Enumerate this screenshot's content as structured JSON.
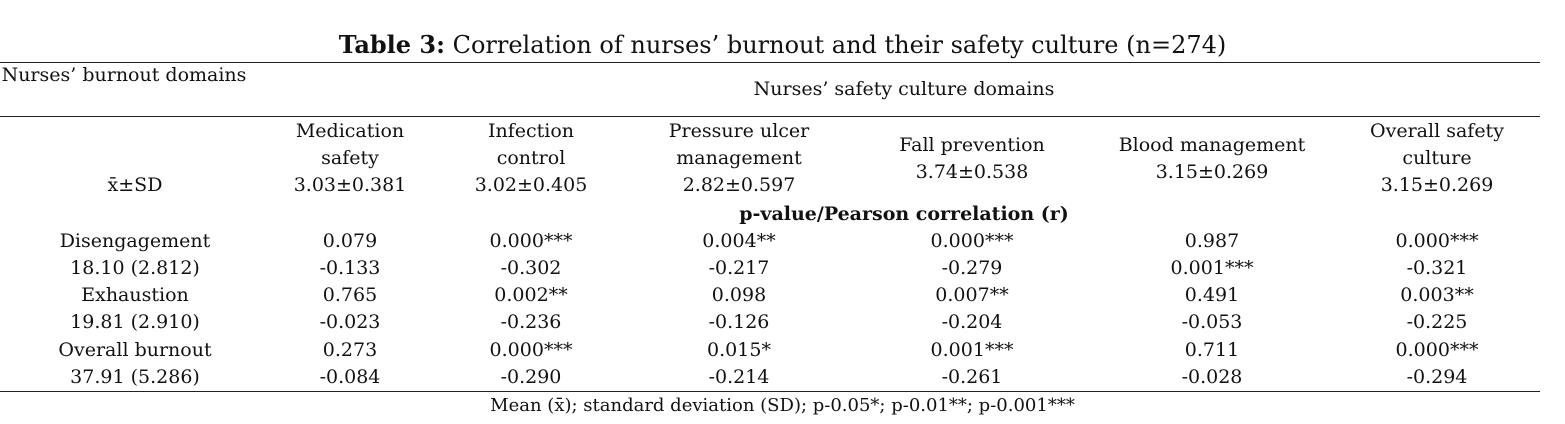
{
  "table": {
    "title_bold": "Table 3:",
    "title_rest": " Correlation of nurses’ burnout and their safety culture (n=274)",
    "burnout_header": "Nurses’ burnout domains",
    "safety_header": "Nurses’ safety culture domains",
    "xsd_label": "x̄±SD",
    "columns": [
      {
        "name": "Medication safety",
        "stat": "3.03±0.381"
      },
      {
        "name": "Infection control",
        "stat": "3.02±0.405"
      },
      {
        "name": "Pressure ulcer management",
        "stat": "2.82±0.597"
      },
      {
        "name": "Fall prevention",
        "stat": "3.74±0.538"
      },
      {
        "name": "Blood management",
        "stat": "3.15±0.269"
      },
      {
        "name": "Overall safety culture",
        "stat": "3.15±0.269"
      }
    ],
    "pvalue_header": "p-value/Pearson correlation (r)",
    "rows": [
      {
        "label": "Disengagement",
        "stat": "18.10 (2.812)",
        "p": [
          "0.079",
          "0.000***",
          "0.004**",
          "0.000***",
          "0.987",
          "0.000***"
        ],
        "r": [
          "-0.133",
          "-0.302",
          "-0.217",
          "-0.279",
          "0.001***",
          "-0.321"
        ]
      },
      {
        "label": "Exhaustion",
        "stat": "19.81 (2.910)",
        "p": [
          "0.765",
          "0.002**",
          "0.098",
          "0.007**",
          "0.491",
          "0.003**"
        ],
        "r": [
          "-0.023",
          "-0.236",
          "-0.126",
          "-0.204",
          "-0.053",
          "-0.225"
        ]
      },
      {
        "label": "Overall burnout",
        "stat": "37.91 (5.286)",
        "p": [
          "0.273",
          "0.000***",
          "0.015*",
          "0.001***",
          "0.711",
          "0.000***"
        ],
        "r": [
          "-0.084",
          "-0.290",
          "-0.214",
          "-0.261",
          "-0.028",
          "-0.294"
        ]
      }
    ],
    "footnote": "Mean (x̄); standard deviation (SD); p-0.05*; p-0.01**; p-0.001***"
  }
}
